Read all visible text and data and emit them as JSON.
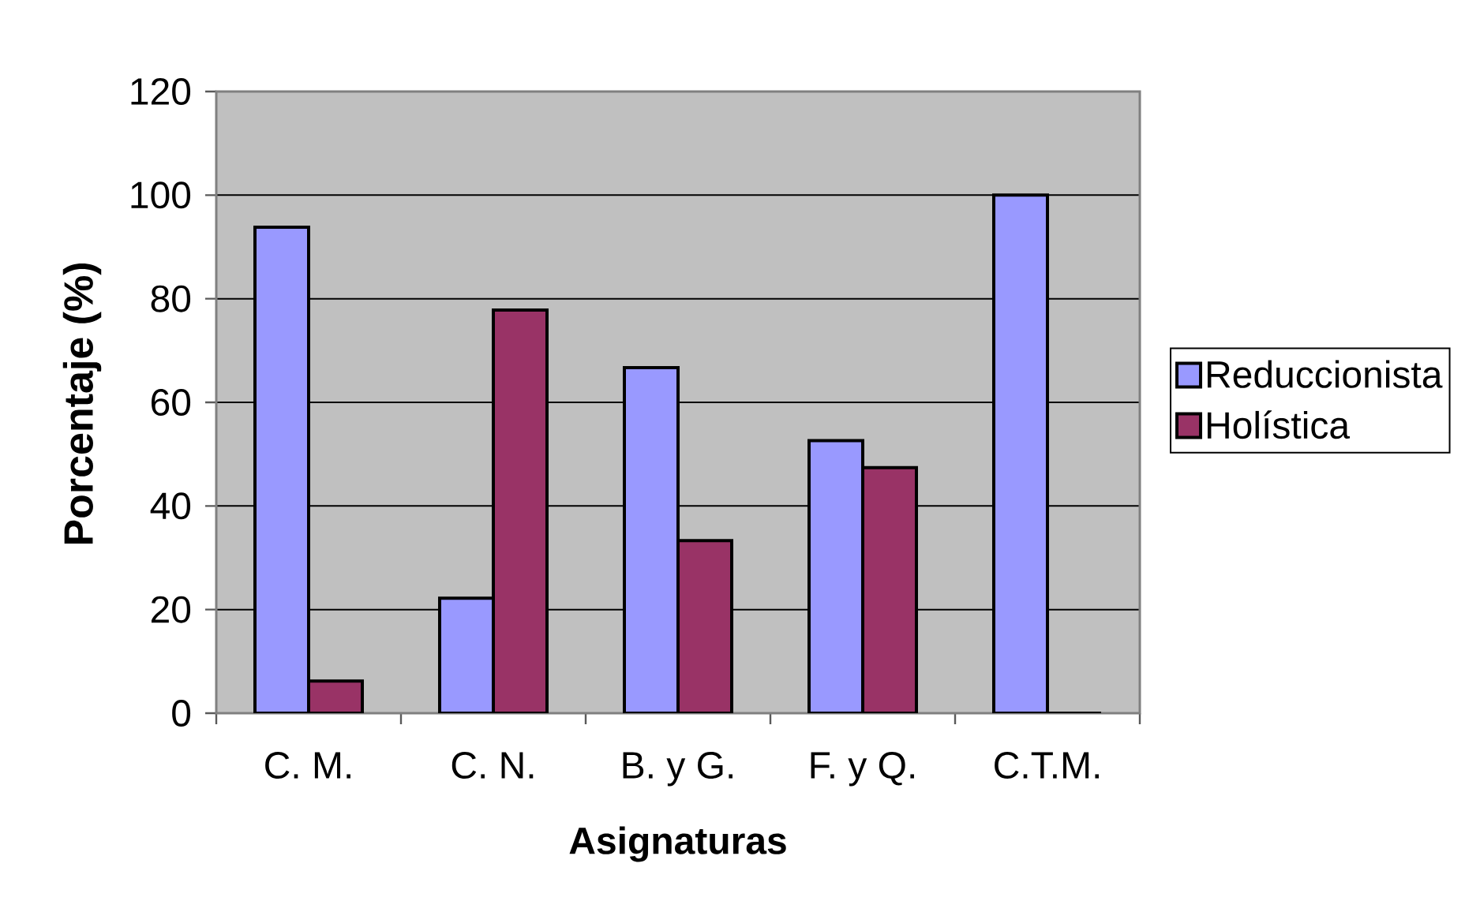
{
  "chart_data": {
    "type": "bar",
    "xlabel": "Asignaturas",
    "ylabel": "Porcentaje (%)",
    "categories": [
      "C. M.",
      "C. N.",
      "B. y G.",
      "F. y Q.",
      "C.T.M."
    ],
    "series": [
      {
        "name": "Reduccionista",
        "color": "#9999ff",
        "values": [
          93.8,
          22.2,
          66.7,
          52.6,
          100
        ]
      },
      {
        "name": "Holística",
        "color": "#993366",
        "values": [
          6.2,
          77.8,
          33.3,
          47.4,
          0
        ]
      }
    ],
    "ylim": [
      0,
      120
    ],
    "yticks": [
      0,
      20,
      40,
      60,
      80,
      100,
      120
    ],
    "grid": "y",
    "legend": "right"
  }
}
